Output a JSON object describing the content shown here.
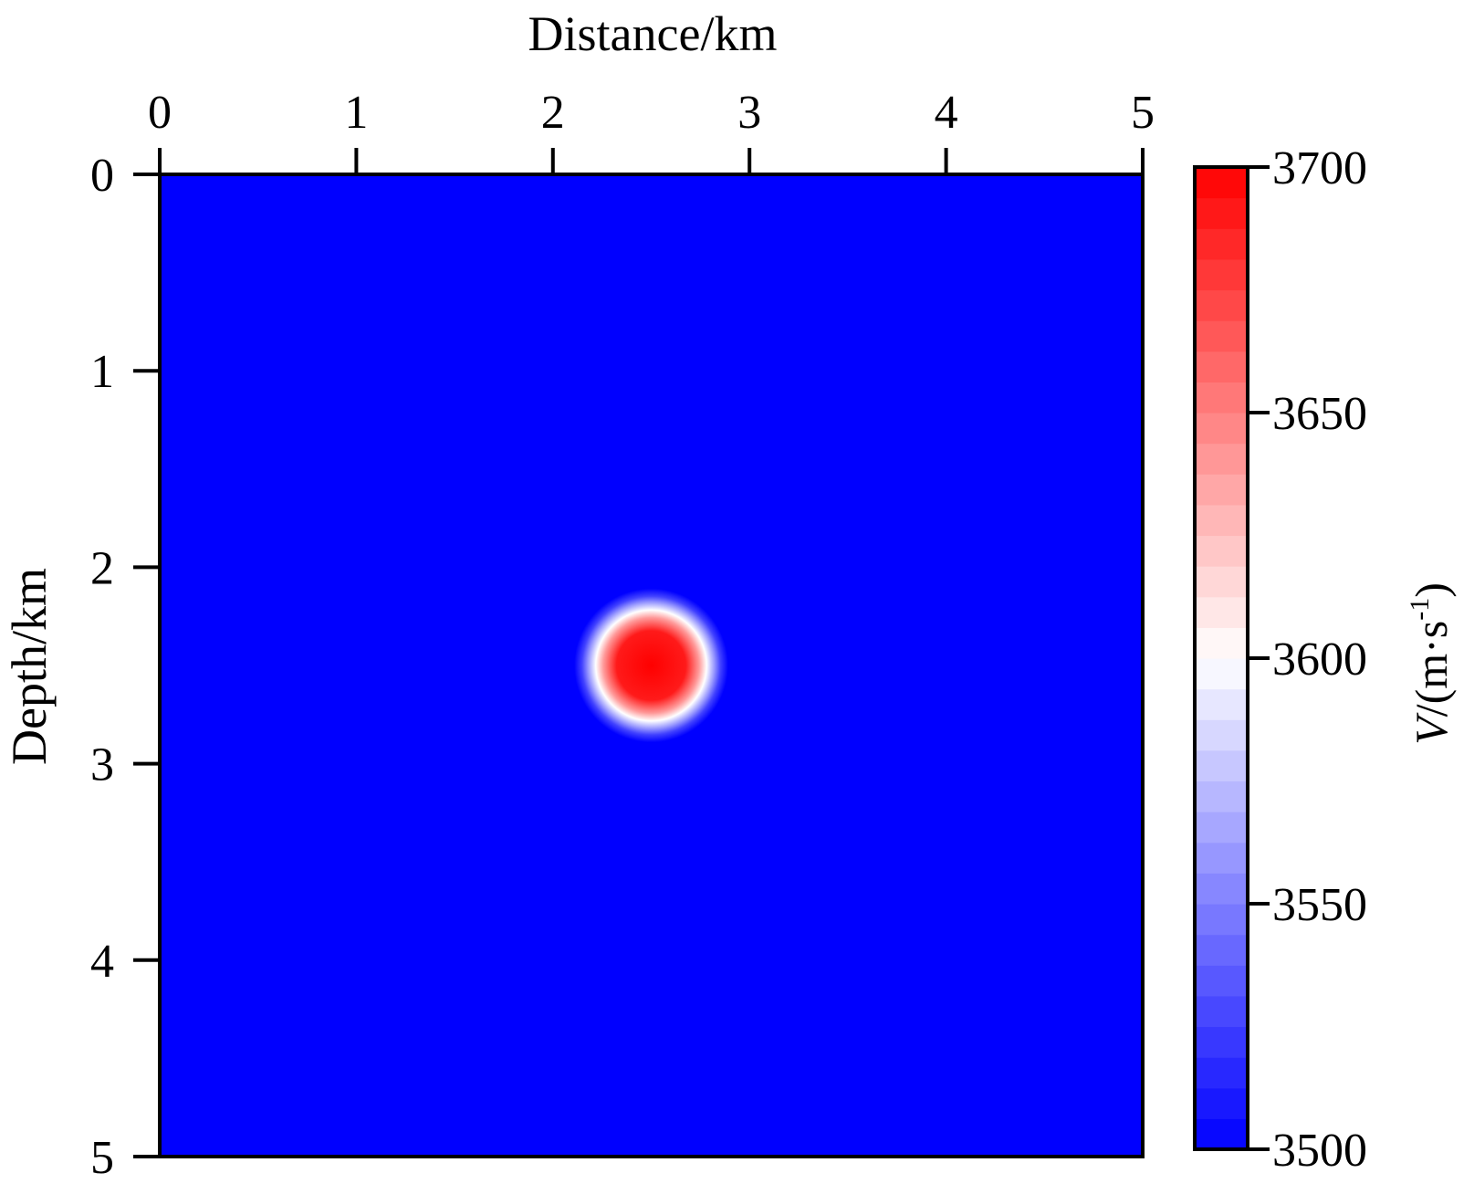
{
  "chart_data": {
    "type": "heatmap",
    "title": "",
    "xlabel": "Distance/km",
    "ylabel": "Depth/km",
    "x_axis_position": "top",
    "y_axis_direction": "down",
    "xlim": [
      0,
      5
    ],
    "ylim": [
      0,
      5
    ],
    "x_ticks": [
      "0",
      "1",
      "2",
      "3",
      "4",
      "5"
    ],
    "y_ticks": [
      "0",
      "1",
      "2",
      "3",
      "4",
      "5"
    ],
    "background_velocity": 3500,
    "anomaly": {
      "shape": "circle",
      "center_x": 2.5,
      "center_y": 2.5,
      "radius": 0.27,
      "peak_velocity": 3700
    },
    "colorbar": {
      "label_italic": "V",
      "label_rest": "/(m·s",
      "label_superscript": "-1",
      "label_close": ")",
      "min": 3500,
      "max": 3700,
      "ticks": [
        "3500",
        "3550",
        "3600",
        "3650",
        "3700"
      ],
      "levels": 32,
      "colormap": [
        "#0000ff",
        "#ffffff",
        "#ff0000"
      ]
    }
  }
}
